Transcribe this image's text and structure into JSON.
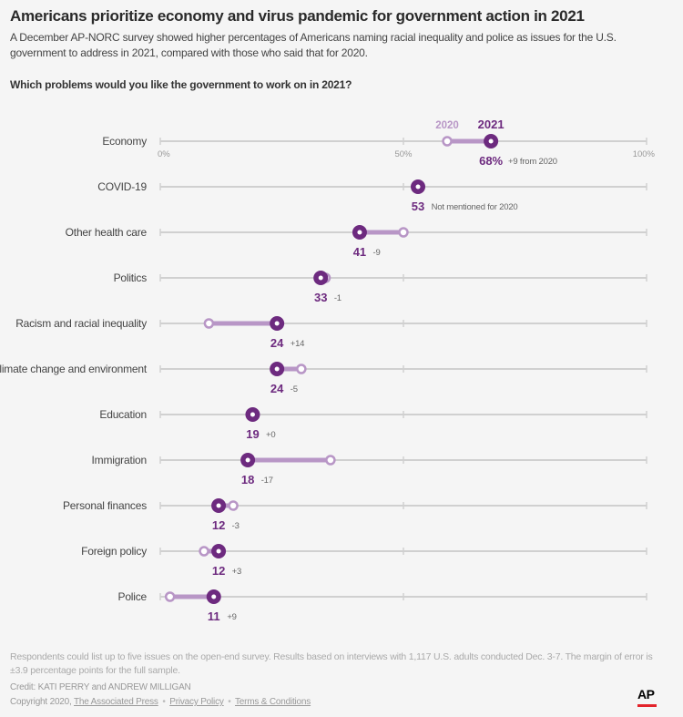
{
  "header": {
    "title": "Americans prioritize economy and virus pandemic for government action in 2021",
    "subtitle": "A December AP-NORC survey showed higher percentages of Americans naming racial inequality and police as issues for the U.S. government to address in 2021, compared with those who said that for 2020.",
    "question": "Which problems would you like the government to work on in 2021?"
  },
  "colors": {
    "y2021": "#6d2a7f",
    "y2020": "#b896c6",
    "grid": "#d0d0d0",
    "change_text": "#666666"
  },
  "chart_data": {
    "type": "dumbbell",
    "x_ticks": [
      "0%",
      "50%",
      "100%"
    ],
    "xlim": [
      0,
      100
    ],
    "series_labels": {
      "y2020": "2020",
      "y2021": "2021"
    },
    "rows": [
      {
        "label": "Economy",
        "v2021": 68,
        "v2020": 59,
        "value_label": "68%",
        "change": "+9 from 2020"
      },
      {
        "label": "COVID-19",
        "v2021": 53,
        "v2020": null,
        "value_label": "53",
        "change": "Not mentioned for 2020"
      },
      {
        "label": "Other health care",
        "v2021": 41,
        "v2020": 50,
        "value_label": "41",
        "change": "-9"
      },
      {
        "label": "Politics",
        "v2021": 33,
        "v2020": 34,
        "value_label": "33",
        "change": "-1"
      },
      {
        "label": "Racism and racial inequality",
        "v2021": 24,
        "v2020": 10,
        "value_label": "24",
        "change": "+14"
      },
      {
        "label": "Climate change and environment",
        "v2021": 24,
        "v2020": 29,
        "value_label": "24",
        "change": "-5"
      },
      {
        "label": "Education",
        "v2021": 19,
        "v2020": 19,
        "value_label": "19",
        "change": "+0"
      },
      {
        "label": "Immigration",
        "v2021": 18,
        "v2020": 35,
        "value_label": "18",
        "change": "-17"
      },
      {
        "label": "Personal finances",
        "v2021": 12,
        "v2020": 15,
        "value_label": "12",
        "change": "-3"
      },
      {
        "label": "Foreign policy",
        "v2021": 12,
        "v2020": 9,
        "value_label": "12",
        "change": "+3"
      },
      {
        "label": "Police",
        "v2021": 11,
        "v2020": 2,
        "value_label": "11",
        "change": "+9"
      }
    ]
  },
  "footer": {
    "note": "Respondents could list up to five issues on the open-end survey. Results based on interviews with 1,117 U.S. adults conducted Dec. 3-7. The margin of error is ±3.9 percentage points for the full sample.",
    "credit": "Credit: KATI PERRY and ANDREW MILLIGAN",
    "copyright_prefix": "Copyright 2020,",
    "link_ap": "The Associated Press",
    "link_privacy": "Privacy Policy",
    "link_terms": "Terms & Conditions",
    "separator": "•",
    "logo": "AP"
  }
}
